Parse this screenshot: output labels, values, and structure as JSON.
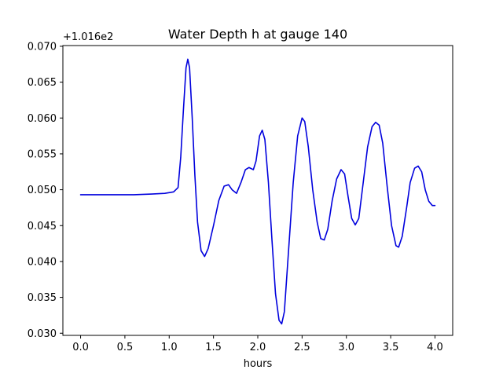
{
  "chart_data": {
    "type": "line",
    "title": "Water Depth h at gauge 140",
    "xlabel": "hours",
    "ylabel": "",
    "offset_text": "+1.016e2",
    "xlim": [
      -0.2,
      4.2
    ],
    "ylim": [
      0.0297,
      0.0701
    ],
    "x_ticks": [
      0.0,
      0.5,
      1.0,
      1.5,
      2.0,
      2.5,
      3.0,
      3.5,
      4.0
    ],
    "x_tick_labels": [
      "0.0",
      "0.5",
      "1.0",
      "1.5",
      "2.0",
      "2.5",
      "3.0",
      "3.5",
      "4.0"
    ],
    "y_ticks": [
      0.03,
      0.035,
      0.04,
      0.045,
      0.05,
      0.055,
      0.06,
      0.065,
      0.07
    ],
    "y_tick_labels": [
      "0.030",
      "0.035",
      "0.040",
      "0.045",
      "0.050",
      "0.055",
      "0.060",
      "0.065",
      "0.070"
    ],
    "grid": false,
    "legend": "none",
    "series": [
      {
        "color": "#0000dd",
        "points": [
          [
            0.0,
            0.0493
          ],
          [
            0.3,
            0.0493
          ],
          [
            0.6,
            0.0493
          ],
          [
            0.8,
            0.0494
          ],
          [
            0.95,
            0.0495
          ],
          [
            1.05,
            0.0497
          ],
          [
            1.1,
            0.0503
          ],
          [
            1.13,
            0.0545
          ],
          [
            1.16,
            0.061
          ],
          [
            1.19,
            0.067
          ],
          [
            1.21,
            0.0682
          ],
          [
            1.23,
            0.067
          ],
          [
            1.26,
            0.06
          ],
          [
            1.29,
            0.052
          ],
          [
            1.32,
            0.0455
          ],
          [
            1.36,
            0.0415
          ],
          [
            1.4,
            0.0407
          ],
          [
            1.44,
            0.0418
          ],
          [
            1.5,
            0.045
          ],
          [
            1.56,
            0.0485
          ],
          [
            1.62,
            0.0505
          ],
          [
            1.67,
            0.0507
          ],
          [
            1.71,
            0.05
          ],
          [
            1.76,
            0.0495
          ],
          [
            1.81,
            0.051
          ],
          [
            1.86,
            0.0528
          ],
          [
            1.9,
            0.0531
          ],
          [
            1.95,
            0.0528
          ],
          [
            1.98,
            0.054
          ],
          [
            2.02,
            0.0575
          ],
          [
            2.05,
            0.0583
          ],
          [
            2.08,
            0.057
          ],
          [
            2.12,
            0.051
          ],
          [
            2.16,
            0.043
          ],
          [
            2.2,
            0.0355
          ],
          [
            2.24,
            0.0318
          ],
          [
            2.27,
            0.0313
          ],
          [
            2.3,
            0.033
          ],
          [
            2.35,
            0.042
          ],
          [
            2.4,
            0.051
          ],
          [
            2.45,
            0.0575
          ],
          [
            2.5,
            0.06
          ],
          [
            2.53,
            0.0595
          ],
          [
            2.57,
            0.056
          ],
          [
            2.62,
            0.05
          ],
          [
            2.67,
            0.0455
          ],
          [
            2.71,
            0.0432
          ],
          [
            2.75,
            0.043
          ],
          [
            2.79,
            0.0445
          ],
          [
            2.84,
            0.0485
          ],
          [
            2.89,
            0.0515
          ],
          [
            2.94,
            0.0528
          ],
          [
            2.98,
            0.0522
          ],
          [
            3.02,
            0.049
          ],
          [
            3.06,
            0.046
          ],
          [
            3.1,
            0.0451
          ],
          [
            3.14,
            0.046
          ],
          [
            3.19,
            0.051
          ],
          [
            3.24,
            0.056
          ],
          [
            3.29,
            0.0588
          ],
          [
            3.33,
            0.0594
          ],
          [
            3.37,
            0.059
          ],
          [
            3.41,
            0.0565
          ],
          [
            3.46,
            0.0505
          ],
          [
            3.51,
            0.045
          ],
          [
            3.56,
            0.0422
          ],
          [
            3.59,
            0.042
          ],
          [
            3.63,
            0.0435
          ],
          [
            3.68,
            0.0475
          ],
          [
            3.72,
            0.051
          ],
          [
            3.77,
            0.053
          ],
          [
            3.81,
            0.0533
          ],
          [
            3.85,
            0.0525
          ],
          [
            3.89,
            0.05
          ],
          [
            3.93,
            0.0484
          ],
          [
            3.97,
            0.0478
          ],
          [
            4.0,
            0.0478
          ]
        ]
      }
    ]
  }
}
